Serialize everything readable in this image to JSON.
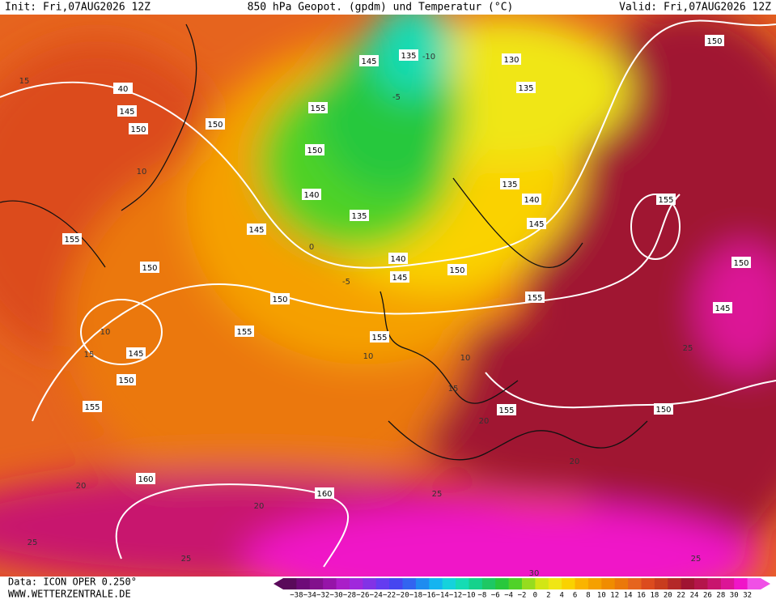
{
  "header": {
    "init": "Init: Fri,07AUG2026 12Z",
    "title": "850 hPa Geopot. (gpdm) und Temperatur (°C)",
    "valid": "Valid: Fri,07AUG2026 12Z"
  },
  "footer": {
    "data": "Data: ICON OPER 0.250°",
    "site": "WWW.WETTERZENTRALE.DE"
  },
  "colorbar": {
    "labels": [
      "−38",
      "−34",
      "−32",
      "−30",
      "−28",
      "−26",
      "−24",
      "−22",
      "−20",
      "−18",
      "−16",
      "−14",
      "−12",
      "−10",
      "−8",
      "−6",
      "−4",
      "−2",
      "0",
      "2",
      "4",
      "6",
      "8",
      "10",
      "12",
      "14",
      "16",
      "18",
      "20",
      "22",
      "24",
      "26",
      "28",
      "30",
      "32"
    ],
    "colors": [
      "#5a0a5a",
      "#6e0a78",
      "#82108c",
      "#9614a8",
      "#aa1ec8",
      "#a028dc",
      "#8232e6",
      "#643cf0",
      "#4646f0",
      "#3264f0",
      "#1e8cf0",
      "#14b4f0",
      "#14d2dc",
      "#14dcb4",
      "#14d28c",
      "#1ec864",
      "#28c83c",
      "#50d228",
      "#96dc1e",
      "#d2e614",
      "#f0e614",
      "#fad200",
      "#fab400",
      "#f5a000",
      "#f08c00",
      "#eb780a",
      "#e6641e",
      "#dc4b1e",
      "#c83c1e",
      "#b42828",
      "#a01432",
      "#b4144b",
      "#c8146e",
      "#dc1496",
      "#f014c8",
      "#f050e6"
    ]
  },
  "geopotential_labels": [
    135,
    130,
    145,
    155,
    150,
    140,
    135,
    145,
    140,
    145,
    150,
    135,
    140,
    145,
    135,
    150,
    155,
    150,
    145,
    155,
    155,
    150,
    155,
    150,
    155,
    145,
    150,
    155,
    160,
    160,
    155,
    150,
    150,
    150,
    145,
    40
  ],
  "temperature_labels": [
    15,
    10,
    -5,
    -10,
    0,
    -5,
    10,
    15,
    10,
    20,
    25,
    20,
    25,
    30,
    20,
    15,
    10,
    20,
    25,
    25,
    25
  ]
}
